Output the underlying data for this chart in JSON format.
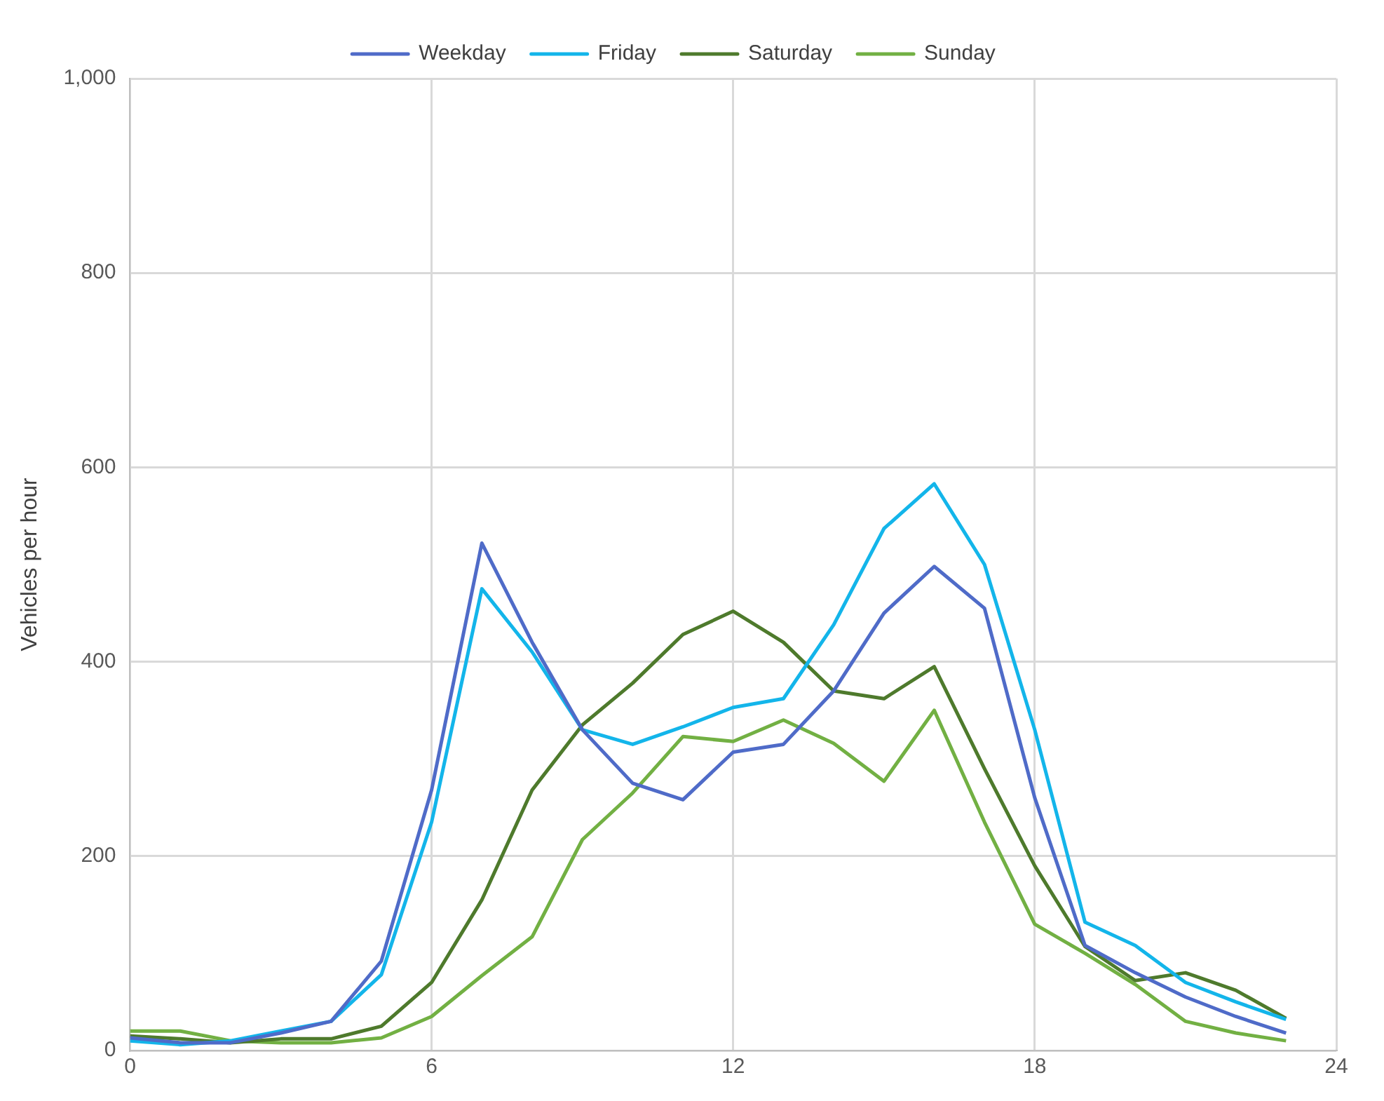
{
  "chart_data": {
    "type": "line",
    "ylabel": "Vehicles per hour",
    "x": [
      0,
      1,
      2,
      3,
      4,
      5,
      6,
      7,
      8,
      9,
      10,
      11,
      12,
      13,
      14,
      15,
      16,
      17,
      18,
      19,
      20,
      21,
      22,
      23
    ],
    "series": [
      {
        "name": "Weekday",
        "color": "#4f6bc8",
        "values": [
          13,
          8,
          8,
          18,
          30,
          92,
          268,
          522,
          420,
          330,
          275,
          258,
          307,
          315,
          370,
          450,
          498,
          455,
          260,
          108,
          80,
          55,
          35,
          18
        ]
      },
      {
        "name": "Friday",
        "color": "#13b5ea",
        "values": [
          10,
          6,
          10,
          20,
          30,
          78,
          235,
          475,
          410,
          330,
          315,
          333,
          353,
          362,
          438,
          537,
          583,
          500,
          330,
          132,
          108,
          70,
          50,
          32
        ]
      },
      {
        "name": "Saturday",
        "color": "#4e7a2c",
        "values": [
          15,
          12,
          8,
          12,
          12,
          25,
          70,
          155,
          268,
          335,
          378,
          428,
          452,
          420,
          370,
          362,
          395,
          290,
          190,
          107,
          72,
          80,
          62,
          33
        ]
      },
      {
        "name": "Sunday",
        "color": "#72b043",
        "values": [
          20,
          20,
          10,
          8,
          8,
          13,
          35,
          77,
          117,
          217,
          265,
          323,
          318,
          340,
          316,
          277,
          350,
          235,
          130,
          100,
          68,
          30,
          18,
          10
        ]
      }
    ],
    "xlim": [
      0,
      24
    ],
    "xticks": [
      0,
      6,
      12,
      18,
      24
    ],
    "ylim": [
      0,
      1000
    ],
    "yticks": [
      0,
      200,
      400,
      600,
      800,
      {
        "value": 1000,
        "label": "1,000"
      }
    ],
    "grid": true,
    "legend": "top",
    "marker": "none",
    "line_style": "solid"
  }
}
